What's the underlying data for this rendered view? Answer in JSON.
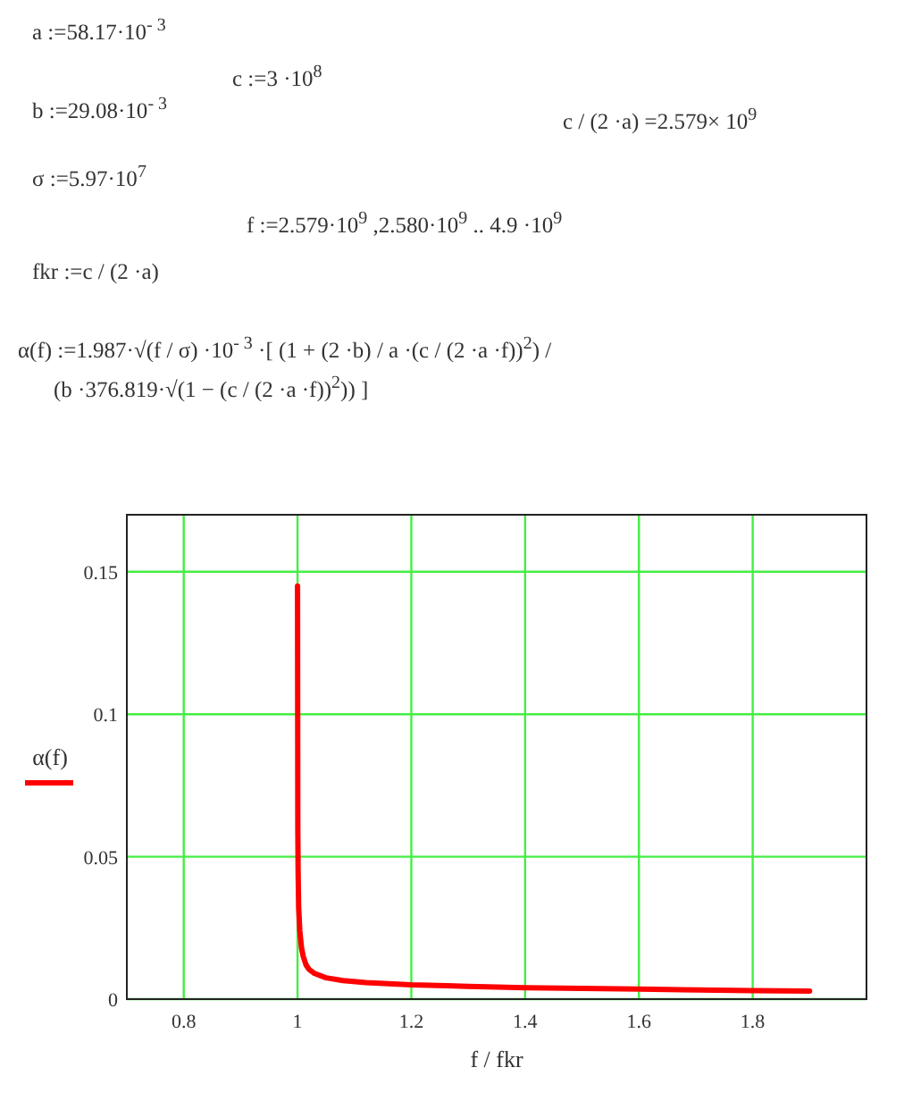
{
  "chart_data": {
    "type": "line",
    "xlabel": "f / fkr",
    "ylabel": "α(f)",
    "annotations": [
      "a :=58.17·10$^{- 3}$",
      "c :=3 ·10$^{8}$",
      "b :=29.08·10$^{- 3}$",
      "c / (2 ·a) =2.579× 10$^{9}$",
      "σ :=5.97·10$^{7}$",
      "f :=2.579·10$^{9}$ ,2.580·10$^{9}$ .. 4.9 ·10$^{9}$",
      "fkr :=c / (2 ·a)",
      "α(f) :=1.987·√(f / σ) ·10$^{- 3}$ ·[ (1 + (2 ·b) / a ·(c / (2 ·a ·f))$^{2}$) / (b ·376.819·√(1 − (c / (2 ·a ·f))$^{2}$)) ]"
    ],
    "xlim": [
      0.7,
      2.0
    ],
    "ylim": [
      0,
      0.17
    ],
    "xticks": [
      0.8,
      1,
      1.2,
      1.4,
      1.6,
      1.8
    ],
    "yticks": [
      0,
      0.05,
      0.1,
      0.15
    ],
    "grid": true,
    "line_style": "solid",
    "series": [
      {
        "color": "#ff0000",
        "x": [
          1.0,
          1.0005,
          1.001,
          1.002,
          1.004,
          1.007,
          1.01,
          1.015,
          1.02,
          1.03,
          1.05,
          1.08,
          1.12,
          1.2,
          1.3,
          1.4,
          1.6,
          1.8,
          1.9
        ],
        "values": [
          0.145,
          0.06,
          0.045,
          0.032,
          0.024,
          0.018,
          0.015,
          0.012,
          0.0105,
          0.009,
          0.0075,
          0.0065,
          0.0058,
          0.005,
          0.0045,
          0.004,
          0.0035,
          0.003,
          0.0028
        ]
      }
    ]
  }
}
